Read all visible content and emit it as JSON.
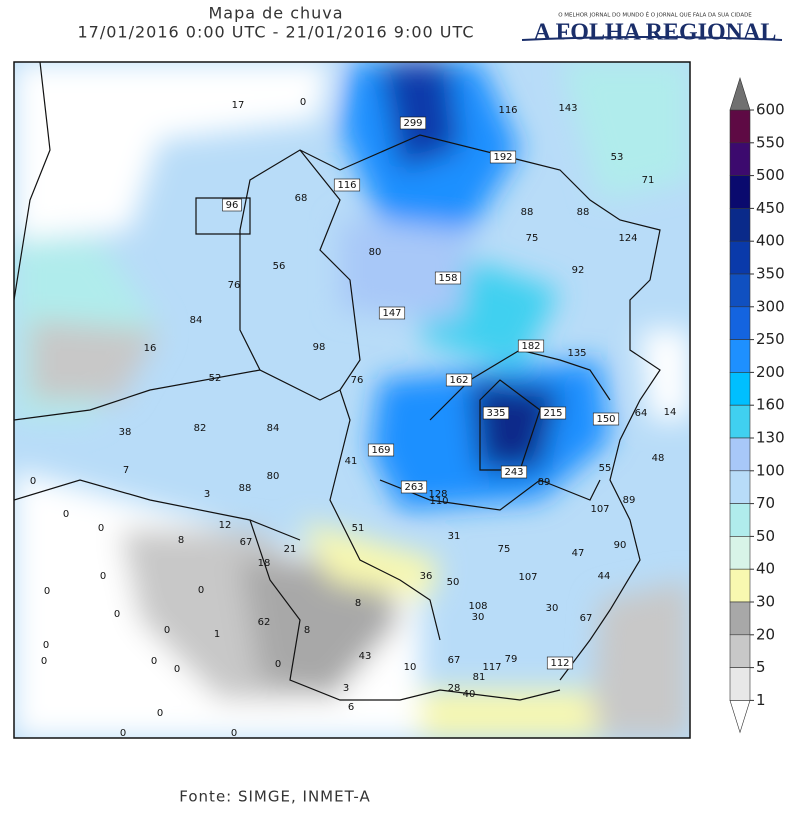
{
  "header": {
    "title": "Mapa de chuva",
    "period": "17/01/2016 0:00 UTC - 21/01/2016 9:00 UTC",
    "logo": {
      "tagline": "O MELHOR JORNAL DO MUNDO É O JORNAL QUE FALA DA SUA CIDADE",
      "name": "A FOLHA REGIONAL"
    }
  },
  "map": {
    "labels": [
      17,
      0,
      299,
      116,
      143,
      192,
      53,
      71,
      116,
      68,
      96,
      88,
      88,
      75,
      124,
      80,
      56,
      92,
      158,
      76,
      147,
      84,
      98,
      182,
      135,
      16,
      52,
      162,
      76,
      335,
      215,
      150,
      64,
      14,
      82,
      84,
      38,
      169,
      48,
      41,
      7,
      80,
      243,
      55,
      89,
      0,
      263,
      128,
      110,
      88,
      3,
      89,
      107,
      0,
      0,
      12,
      51,
      8,
      67,
      21,
      31,
      75,
      90,
      47,
      18,
      36,
      50,
      107,
      44,
      0,
      0,
      0,
      8,
      108,
      30,
      30,
      67,
      62,
      8,
      0,
      0,
      1,
      0,
      43,
      67,
      117,
      79,
      112,
      0,
      0,
      10,
      81,
      28,
      3,
      0,
      0,
      40,
      6,
      0,
      0,
      0
    ],
    "colorbar": {
      "ticks": [
        600,
        550,
        500,
        450,
        400,
        350,
        300,
        250,
        200,
        160,
        130,
        100,
        70,
        50,
        40,
        30,
        20,
        5,
        1
      ],
      "colors": [
        "#5e0a44",
        "#3c0a6e",
        "#0a0a6e",
        "#0a2a8a",
        "#0a3aaa",
        "#1050c0",
        "#1464e0",
        "#1e90ff",
        "#00bfff",
        "#40d0f0",
        "#a8c8f8",
        "#b8dcf8",
        "#b0ecec",
        "#d8f4e8",
        "#f8f8b0",
        "#a8a8a8",
        "#c8c8c8",
        "#e8e8e8"
      ],
      "over_color": "#707070",
      "under_color": "#ffffff"
    }
  },
  "source": "Fonte: SIMGE, INMET-A"
}
